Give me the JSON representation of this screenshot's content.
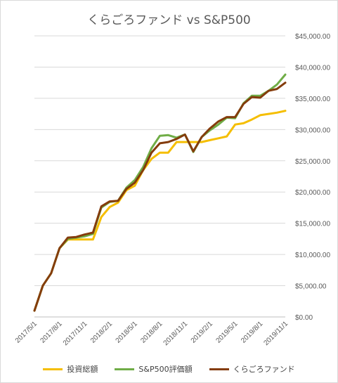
{
  "chart_data": {
    "type": "line",
    "title": "くらごろファンド vs S&P500",
    "x": [
      "2017/5/1",
      "2017/6/1",
      "2017/7/1",
      "2017/8/1",
      "2017/9/1",
      "2017/10/1",
      "2017/11/1",
      "2017/12/1",
      "2018/1/1",
      "2018/2/1",
      "2018/3/1",
      "2018/4/1",
      "2018/5/1",
      "2018/6/1",
      "2018/7/1",
      "2018/8/1",
      "2018/9/1",
      "2018/10/1",
      "2018/11/1",
      "2018/12/1",
      "2019/1/1",
      "2019/2/1",
      "2019/3/1",
      "2019/4/1",
      "2019/5/1",
      "2019/6/1",
      "2019/7/1",
      "2019/8/1",
      "2019/9/1",
      "2019/10/1",
      "2019/11/1"
    ],
    "x_tick_labels": [
      "2017/5/1",
      "2017/8/1",
      "2017/11/1",
      "2018/2/1",
      "2018/5/1",
      "2018/8/1",
      "2018/11/1",
      "2019/2/1",
      "2019/5/1",
      "2019/8/1",
      "2019/11/1"
    ],
    "y_tick_labels": [
      "$0.00",
      "$5,000.00",
      "$10,000.00",
      "$15,000.00",
      "$20,000.00",
      "$25,000.00",
      "$30,000.00",
      "$35,000.00",
      "$40,000.00",
      "$45,000.00"
    ],
    "ylim": [
      0,
      45000
    ],
    "grid": true,
    "legend_position": "bottom",
    "series": [
      {
        "name": "投資総額",
        "color": "#f5be00",
        "values": [
          1000,
          5000,
          7000,
          11000,
          12400,
          12400,
          12400,
          12400,
          16000,
          17600,
          18300,
          20300,
          21000,
          23500,
          25300,
          26300,
          26300,
          28000,
          28000,
          28000,
          28000,
          28300,
          28600,
          28900,
          30800,
          31000,
          31600,
          32300,
          32500,
          32700,
          33000
        ]
      },
      {
        "name": "S&P500評価額",
        "color": "#70ad47",
        "values": [
          1000,
          5000,
          7000,
          11000,
          12500,
          12700,
          12900,
          13300,
          17500,
          18400,
          18600,
          20700,
          21900,
          24000,
          27000,
          29000,
          29100,
          28700,
          29200,
          26400,
          28800,
          29900,
          30800,
          31900,
          31800,
          34200,
          35400,
          35400,
          36200,
          37200,
          38800
        ]
      },
      {
        "name": "くらごろファンド",
        "color": "#843c0c",
        "values": [
          1000,
          5000,
          7000,
          11000,
          12700,
          12800,
          13200,
          13500,
          17700,
          18500,
          18600,
          20500,
          21500,
          23500,
          26300,
          27800,
          28000,
          28500,
          29200,
          26500,
          28800,
          30200,
          31300,
          32000,
          32000,
          34100,
          35200,
          35100,
          36200,
          36500,
          37500
        ]
      }
    ]
  }
}
